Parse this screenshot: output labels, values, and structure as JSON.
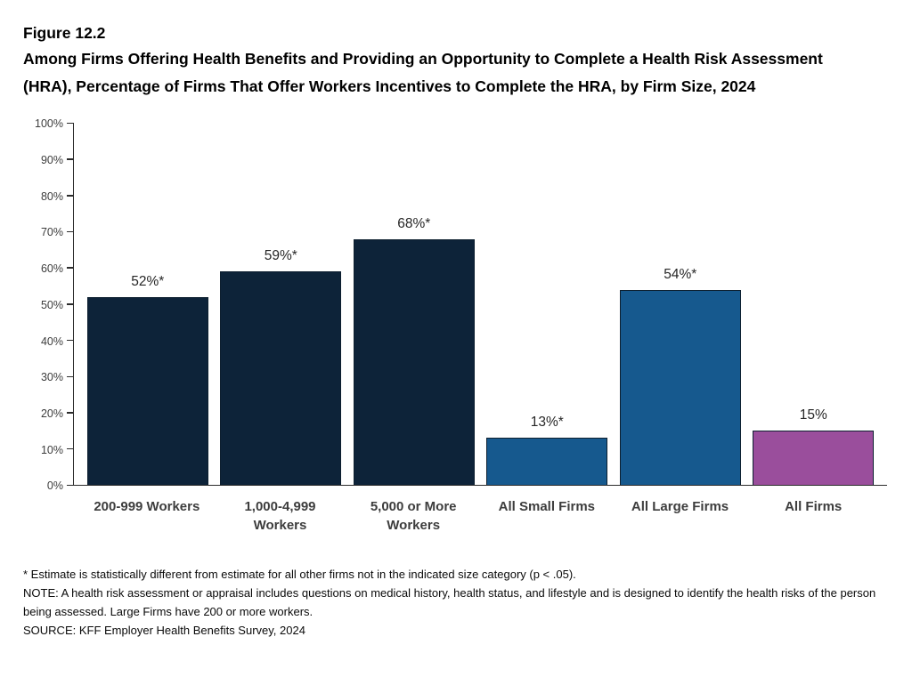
{
  "figure": {
    "label": "Figure 12.2",
    "title": "Among Firms Offering Health Benefits and Providing an Opportunity to Complete a Health Risk Assessment (HRA), Percentage of Firms That Offer Workers Incentives to Complete the HRA, by Firm Size, 2024"
  },
  "chart_data": {
    "type": "bar",
    "title": "Percentage of Firms That Offer Workers Incentives to Complete the HRA, by Firm Size, 2024",
    "categories": [
      "200-999 Workers",
      "1,000-4,999 Workers",
      "5,000 or More Workers",
      "All Small Firms",
      "All Large Firms",
      "All Firms"
    ],
    "values": [
      52,
      59,
      68,
      13,
      54,
      15
    ],
    "data_labels": [
      "52%*",
      "59%*",
      "68%*",
      "13%*",
      "54%*",
      "15%"
    ],
    "bar_colors": [
      "#0D2339",
      "#0D2339",
      "#0D2339",
      "#16598E",
      "#16598E",
      "#9A4E9C"
    ],
    "bar_border_color": "#0D1F2F",
    "xlabel": "",
    "ylabel": "",
    "ylim": [
      0,
      100
    ],
    "yticks": [
      0,
      10,
      20,
      30,
      40,
      50,
      60,
      70,
      80,
      90,
      100
    ],
    "ytick_labels": [
      "0%",
      "10%",
      "20%",
      "30%",
      "40%",
      "50%",
      "60%",
      "70%",
      "80%",
      "90%",
      "100%"
    ],
    "grid": false,
    "legend": "none"
  },
  "footnotes": {
    "asterisk": "* Estimate is statistically different from estimate for all other firms not in the indicated size category (p < .05).",
    "note": "NOTE: A health risk assessment or appraisal includes questions on medical history, health status, and lifestyle and is designed to identify the health risks of the person being assessed. Large Firms have 200 or more workers.",
    "source": "SOURCE: KFF Employer Health Benefits Survey, 2024"
  }
}
